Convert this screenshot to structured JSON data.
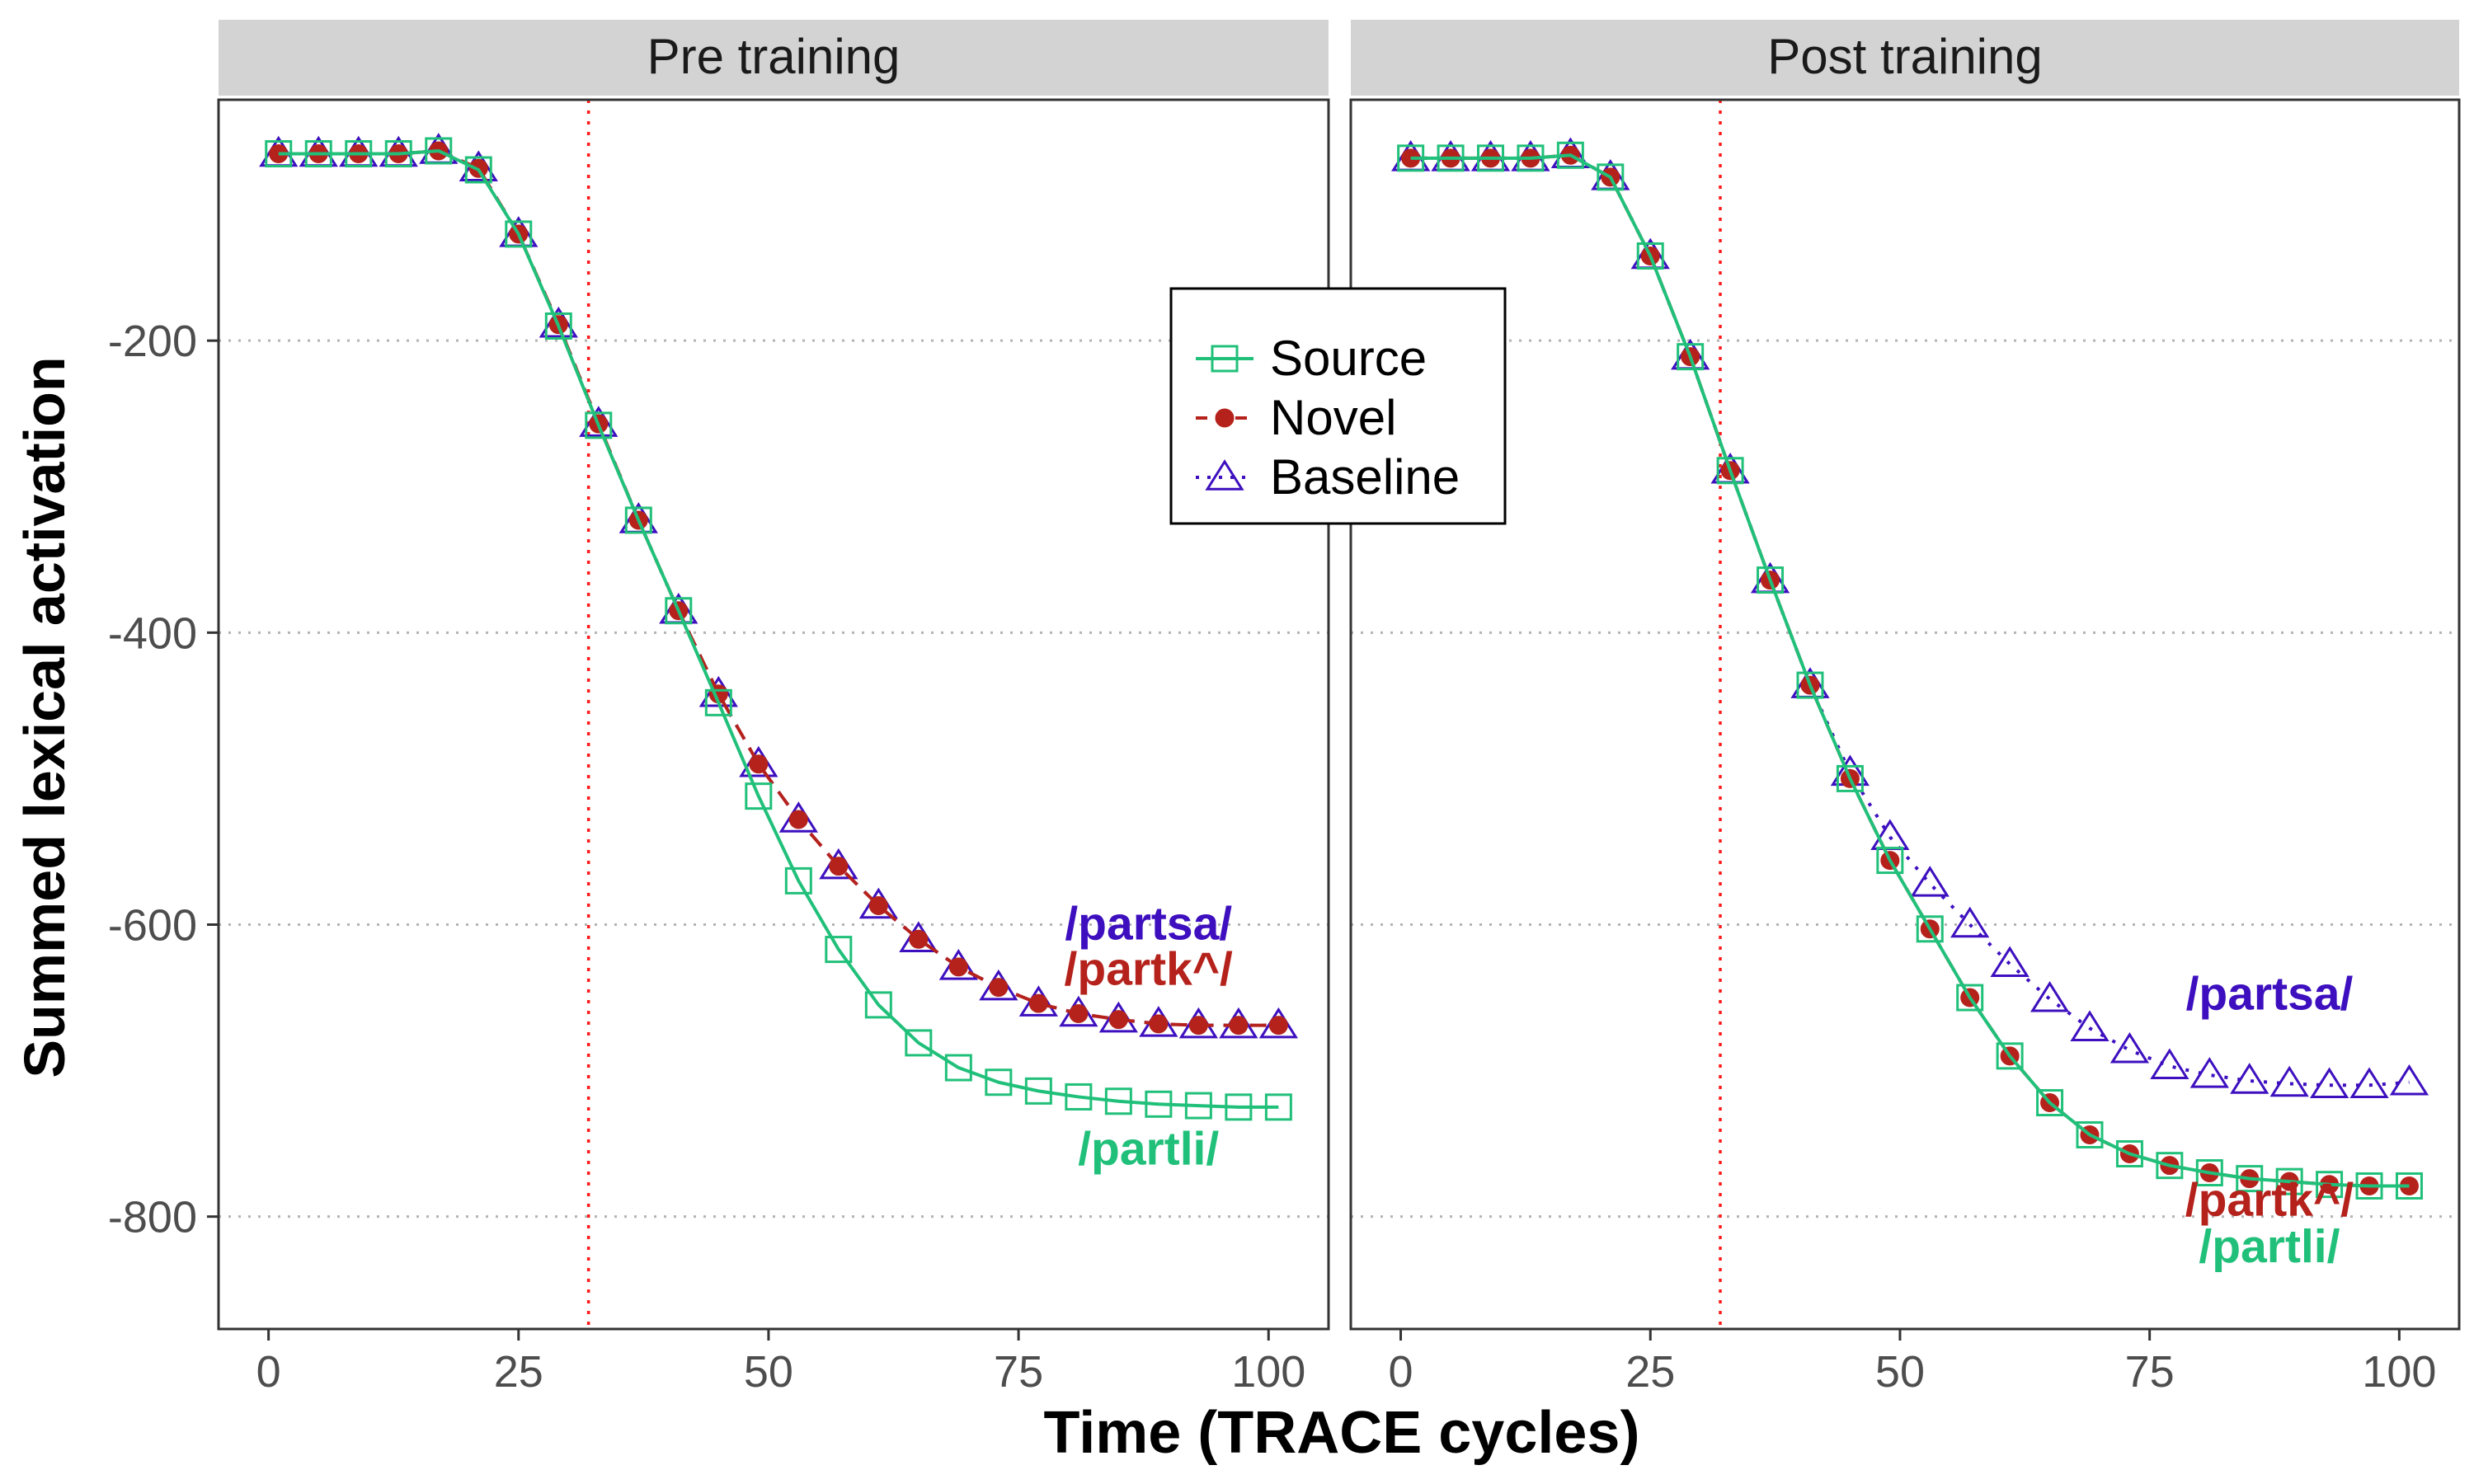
{
  "colors": {
    "source": "#21c07a",
    "novel": "#b5221c",
    "baseline": "#3d0fbf",
    "onset_line": "#ff1a1a",
    "grid": "#b3b3b3",
    "strip": "#d3d3d3"
  },
  "chart_data": {
    "type": "line",
    "xlabel": "Time (TRACE cycles)",
    "ylabel": "Summed lexical activation",
    "xlim": [
      -5,
      106
    ],
    "ylim": [
      -877,
      -35
    ],
    "xticks": [
      0,
      25,
      50,
      75,
      100
    ],
    "yticks": [
      -200,
      -400,
      -600,
      -800
    ],
    "grid": "horizontal dotted at y ticks",
    "legend": {
      "placement": "between panels, top",
      "entries": [
        {
          "key": "source",
          "label": "Source",
          "marker": "square",
          "line": "solid"
        },
        {
          "key": "novel",
          "label": "Novel",
          "marker": "circle",
          "line": "dashed"
        },
        {
          "key": "baseline",
          "label": "Baseline",
          "marker": "triangle",
          "line": "dotted"
        }
      ]
    },
    "x": [
      1,
      5,
      9,
      13,
      17,
      21,
      25,
      29,
      33,
      37,
      41,
      45,
      49,
      53,
      57,
      61,
      65,
      69,
      73,
      77,
      81,
      85,
      89,
      93,
      97,
      101
    ],
    "panels": [
      {
        "title": "Pre training",
        "vline_x": 32,
        "series": [
          {
            "key": "source",
            "values": [
              -72,
              -72,
              -72,
              -72,
              -70,
              -83,
              -127,
              -190,
              -258,
              -323,
              -385,
              -448,
              -512,
              -570,
              -617,
              -655,
              -681,
              -698,
              -708,
              -714,
              -718,
              -721,
              -723,
              -724,
              -725,
              -725
            ]
          },
          {
            "key": "novel",
            "values": [
              -72,
              -72,
              -72,
              -72,
              -70,
              -82,
              -127,
              -189,
              -257,
              -323,
              -385,
              -442,
              -490,
              -528,
              -560,
              -587,
              -610,
              -629,
              -643,
              -654,
              -661,
              -665,
              -668,
              -669,
              -669,
              -669
            ]
          },
          {
            "key": "baseline",
            "values": [
              -72,
              -72,
              -72,
              -72,
              -70,
              -82,
              -127,
              -189,
              -257,
              -323,
              -385,
              -442,
              -490,
              -528,
              -560,
              -587,
              -610,
              -629,
              -643,
              -654,
              -661,
              -665,
              -668,
              -669,
              -669,
              -669
            ]
          }
        ],
        "annotations": [
          {
            "text": "/partsa/",
            "key": "baseline",
            "x": 88,
            "y": -599
          },
          {
            "text": "/partk^/",
            "key": "novel",
            "x": 88,
            "y": -630
          },
          {
            "text": "/partli/",
            "key": "source",
            "x": 88,
            "y": -753
          }
        ]
      },
      {
        "title": "Post training",
        "vline_x": 32,
        "series": [
          {
            "key": "source",
            "values": [
              -75,
              -75,
              -75,
              -75,
              -73,
              -88,
              -142,
              -211,
              -289,
              -364,
              -436,
              -500,
              -556,
              -603,
              -650,
              -690,
              -722,
              -744,
              -757,
              -765,
              -770,
              -774,
              -776,
              -778,
              -779,
              -779
            ]
          },
          {
            "key": "novel",
            "values": [
              -75,
              -75,
              -75,
              -75,
              -73,
              -88,
              -142,
              -211,
              -289,
              -364,
              -436,
              -500,
              -556,
              -603,
              -650,
              -690,
              -722,
              -744,
              -757,
              -765,
              -770,
              -774,
              -776,
              -778,
              -779,
              -779
            ]
          },
          {
            "key": "baseline",
            "values": [
              -75,
              -75,
              -75,
              -75,
              -73,
              -88,
              -142,
              -211,
              -289,
              -364,
              -436,
              -496,
              -540,
              -572,
              -600,
              -627,
              -651,
              -671,
              -686,
              -697,
              -703,
              -707,
              -709,
              -710,
              -710,
              -708
            ]
          }
        ],
        "annotations": [
          {
            "text": "/partsa/",
            "key": "baseline",
            "x": 87,
            "y": -647
          },
          {
            "text": "/partk^/",
            "key": "novel",
            "x": 87,
            "y": -788
          },
          {
            "text": "/partli/",
            "key": "source",
            "x": 87,
            "y": -820
          }
        ]
      }
    ]
  }
}
